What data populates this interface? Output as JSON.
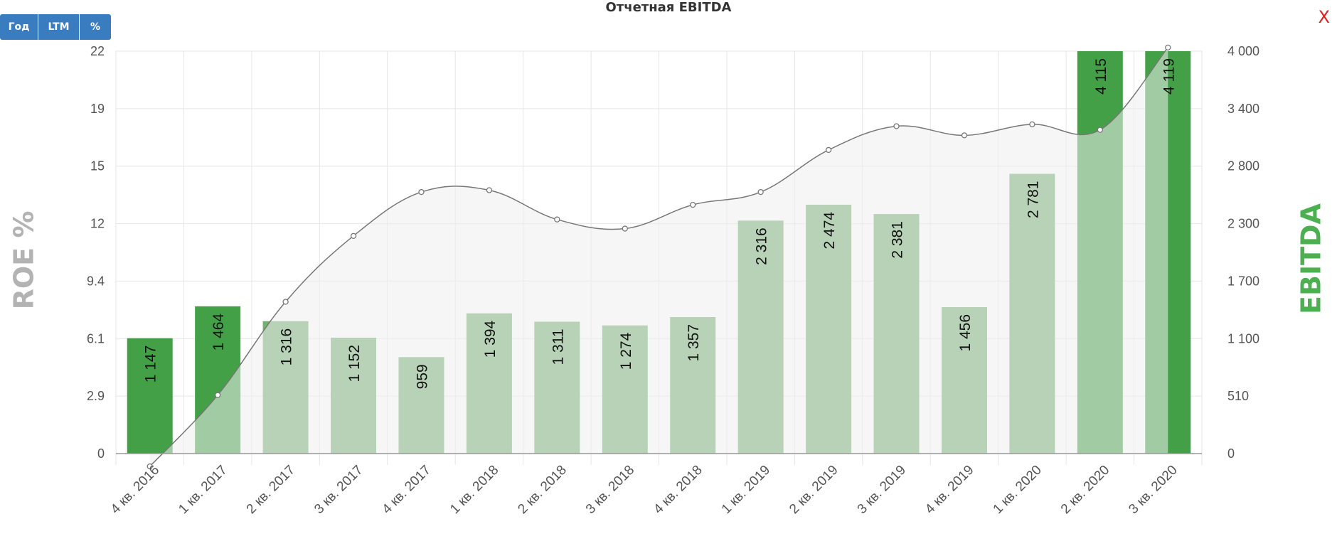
{
  "title": "Отчетная EBITDA",
  "buttons": [
    {
      "label": "Год"
    },
    {
      "label": "LTM"
    },
    {
      "label": "%"
    }
  ],
  "close_label": "X",
  "colors": {
    "bar_dark": "#43a047",
    "bar_light": "#74b072",
    "left_axis_title": "#b3b3b3",
    "right_axis_title": "#4caf50",
    "line": "#777777",
    "area": "#efefef",
    "grid": "#e6e6e6",
    "button": "#3a7cc0",
    "close": "#e02020"
  },
  "chart_data": {
    "type": "bar",
    "title": "Отчетная EBITDA",
    "categories": [
      "4 кв. 2016",
      "1 кв. 2017",
      "2 кв. 2017",
      "3 кв. 2017",
      "4 кв. 2017",
      "1 кв. 2018",
      "2 кв. 2018",
      "3 кв. 2018",
      "4 кв. 2018",
      "1 кв. 2019",
      "2 кв. 2019",
      "3 кв. 2019",
      "4 кв. 2019",
      "1 кв. 2020",
      "2 кв. 2020",
      "3 кв. 2020"
    ],
    "ylabel_left": "ROE %",
    "ylabel_right": "EBITDA",
    "yticks_left": [
      "0",
      "2.9",
      "6.1",
      "9.4",
      "12",
      "15",
      "19",
      "22"
    ],
    "yticks_right": [
      "0",
      "510",
      "1 100",
      "1 700",
      "2 300",
      "2 800",
      "3 400",
      "4 000"
    ],
    "ylim_left": [
      0,
      22
    ],
    "ylim_right": [
      0,
      4000
    ],
    "grid": true,
    "series": [
      {
        "name": "EBITDA",
        "type": "bar",
        "axis": "right",
        "values": [
          1147,
          1464,
          1316,
          1152,
          959,
          1394,
          1311,
          1274,
          1357,
          2316,
          2474,
          2381,
          1456,
          2781,
          4115,
          4119
        ],
        "labels": [
          "1 147",
          "1 464",
          "1 316",
          "1 152",
          "959",
          "1 394",
          "1 311",
          "1 274",
          "1 357",
          "2 316",
          "2 474",
          "2 381",
          "1 456",
          "2 781",
          "4 115",
          "4 119"
        ],
        "highlighted": [
          true,
          true,
          false,
          false,
          false,
          false,
          false,
          false,
          false,
          false,
          false,
          false,
          false,
          false,
          true,
          true
        ]
      },
      {
        "name": "ROE %",
        "type": "area",
        "axis": "left",
        "values": [
          -0.7,
          3.2,
          8.3,
          11.9,
          14.3,
          14.4,
          12.8,
          12.3,
          13.6,
          14.3,
          16.6,
          17.9,
          17.4,
          18.0,
          17.7,
          22.2
        ]
      }
    ]
  }
}
